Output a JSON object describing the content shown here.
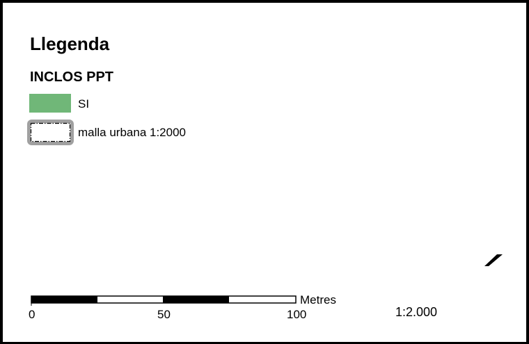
{
  "legend": {
    "title": "Llegenda",
    "layer_title": "INCLOS PPT",
    "items": [
      {
        "label": "SI",
        "fill_color": "#70b778"
      },
      {
        "label": "malla urbana 1:2000",
        "fill_color": "#ffffff",
        "outline_color": "#a0a0a0"
      }
    ]
  },
  "scale_bar": {
    "unit": "Metres",
    "ticks": [
      "0",
      "50",
      "100"
    ]
  },
  "scale_ratio": "1:2.000",
  "colors": {
    "frame": "#000000",
    "background": "#ffffff"
  }
}
